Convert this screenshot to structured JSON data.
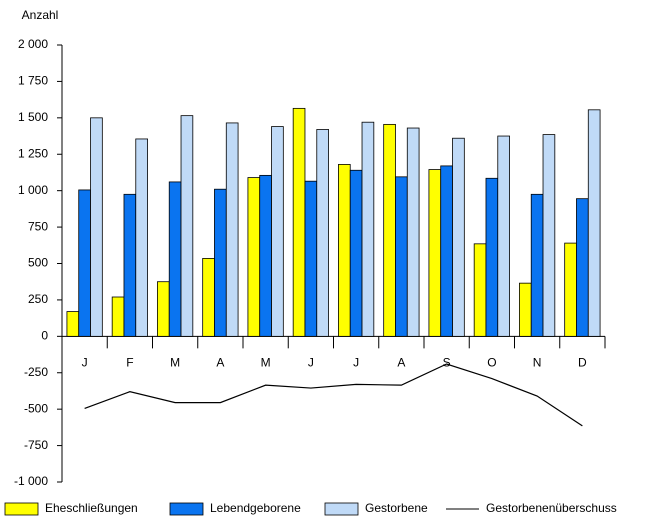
{
  "chart_data": {
    "type": "bar",
    "y_label": "Anzahl",
    "categories": [
      "J",
      "F",
      "M",
      "A",
      "M",
      "J",
      "J",
      "A",
      "S",
      "O",
      "N",
      "D"
    ],
    "series": [
      {
        "name": "Eheschließungen",
        "color": "#ffff00",
        "values": [
          170,
          270,
          375,
          535,
          1090,
          1565,
          1180,
          1455,
          1145,
          635,
          365,
          640
        ]
      },
      {
        "name": "Lebendgeborene",
        "color": "#0a74f0",
        "values": [
          1005,
          975,
          1060,
          1010,
          1105,
          1065,
          1140,
          1095,
          1170,
          1085,
          975,
          945
        ]
      },
      {
        "name": "Gestorbene",
        "color": "#c0daf7",
        "values": [
          1500,
          1355,
          1515,
          1465,
          1440,
          1420,
          1470,
          1430,
          1360,
          1375,
          1385,
          1555
        ]
      },
      {
        "name": "Gestorbenenüberschuss",
        "color": "#000000",
        "type": "line",
        "values": [
          -495,
          -380,
          -455,
          -455,
          -335,
          -355,
          -330,
          -335,
          -190,
          -290,
          -410,
          -615
        ]
      }
    ],
    "ylim": [
      -1000,
      2000
    ],
    "yticks": [
      {
        "value": 2000,
        "label": "2 000"
      },
      {
        "value": 1750,
        "label": "1 750"
      },
      {
        "value": 1500,
        "label": "1 500"
      },
      {
        "value": 1250,
        "label": "1 250"
      },
      {
        "value": 1000,
        "label": "1 000"
      },
      750,
      500,
      250,
      0,
      -250,
      -500,
      -750,
      {
        "value": -1000,
        "label": "-1 000"
      }
    ],
    "grid": false,
    "legend": "bottom"
  }
}
